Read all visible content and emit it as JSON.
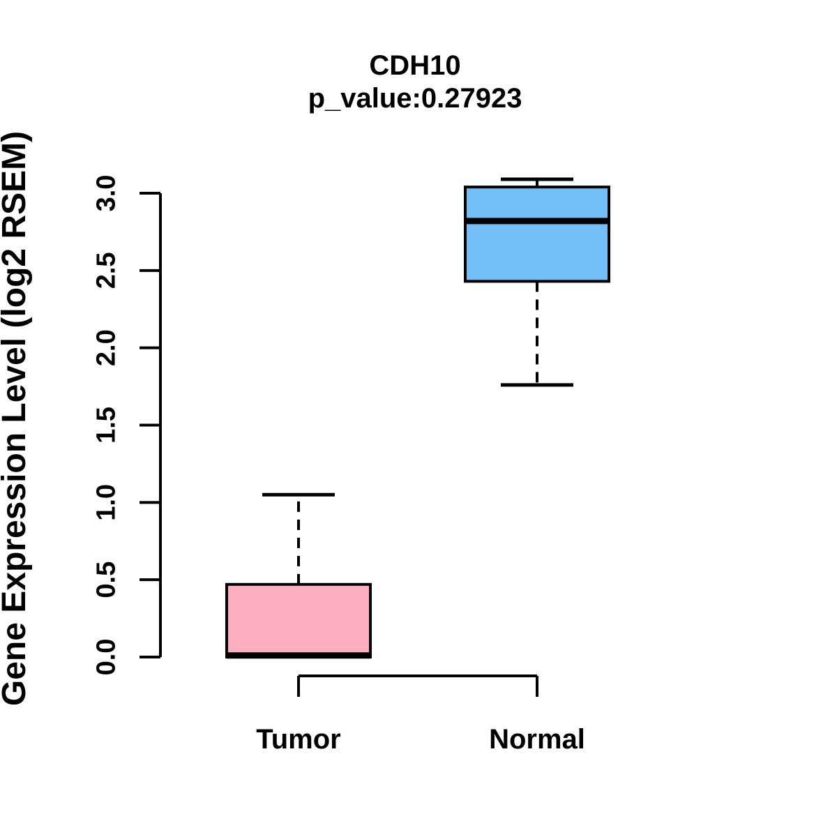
{
  "chart_data": {
    "type": "boxplot",
    "title": "CDH10",
    "subtitle": "p_value:0.27923",
    "ylabel": "Gene Expression Level (log2 RSEM)",
    "xlabel": "",
    "categories": [
      "Tumor",
      "Normal"
    ],
    "yticks": [
      "0.0",
      "0.5",
      "1.0",
      "1.5",
      "2.0",
      "2.5",
      "3.0"
    ],
    "ylim": [
      0.0,
      3.1
    ],
    "grid": false,
    "legend": "none",
    "colors": {
      "tumor_fill": "#FFAEC1",
      "normal_fill": "#74BEF8",
      "line": "#000000",
      "background": "#FFFFFF"
    },
    "series": [
      {
        "name": "Tumor",
        "fill_color": "#FFAEC1",
        "lower_whisker": 0.0,
        "q1": 0.0,
        "median": 0.01,
        "q3": 0.47,
        "upper_whisker": 1.05
      },
      {
        "name": "Normal",
        "fill_color": "#74BEF8",
        "lower_whisker": 1.76,
        "q1": 2.43,
        "median": 2.82,
        "q3": 3.04,
        "upper_whisker": 3.09
      }
    ]
  }
}
